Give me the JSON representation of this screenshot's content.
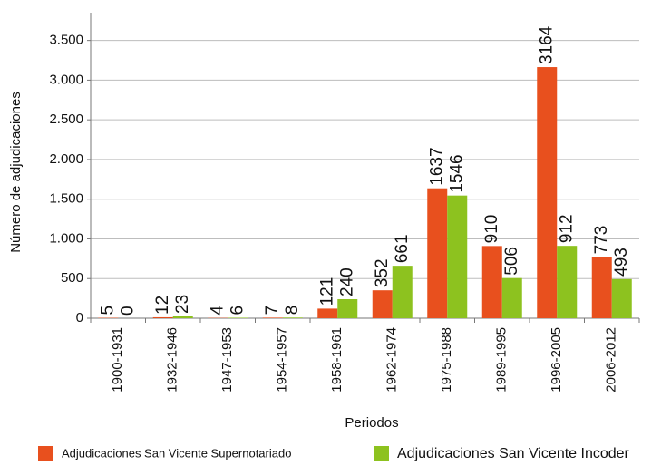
{
  "chart_data": {
    "type": "bar",
    "categories": [
      "1900-1931",
      "1932-1946",
      "1947-1953",
      "1954-1957",
      "1958-1961",
      "1962-1974",
      "1975-1988",
      "1989-1995",
      "1996-2005",
      "2006-2012"
    ],
    "series": [
      {
        "name": "Adjudicaciones San Vicente Supernotariado",
        "color": "#e8501e",
        "values": [
          5,
          12,
          4,
          7,
          121,
          352,
          1637,
          910,
          3164,
          773
        ]
      },
      {
        "name": "Adjudicaciones San Vicente Incoder",
        "color": "#8dc21f",
        "values": [
          0,
          23,
          6,
          8,
          240,
          661,
          1546,
          506,
          912,
          493
        ]
      }
    ],
    "xlabel": "Periodos",
    "ylabel": "Número de adjudicaciones",
    "ylim": [
      0,
      3850
    ],
    "yticks": [
      0,
      500,
      {
        "value": 1000,
        "label": "1.000"
      },
      {
        "value": 1500,
        "label": "1.500"
      },
      {
        "value": 2000,
        "label": "2.000"
      },
      {
        "value": 2500,
        "label": "2.500"
      },
      {
        "value": 3000,
        "label": "3.000"
      },
      {
        "value": 3500,
        "label": "3.500"
      }
    ],
    "grid": true,
    "legend": "bottom"
  }
}
